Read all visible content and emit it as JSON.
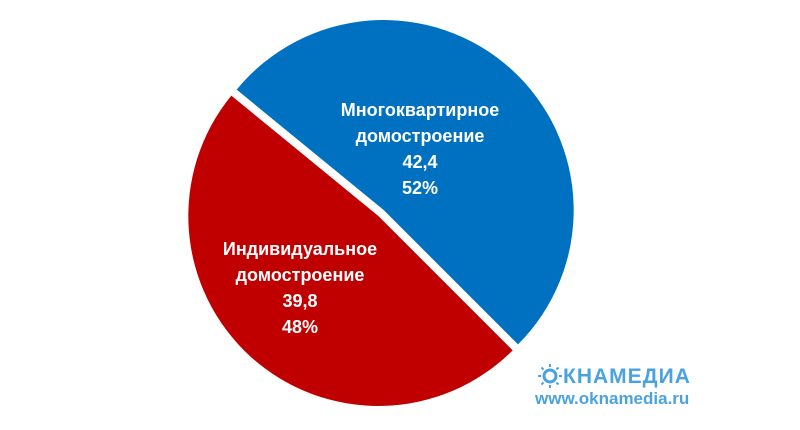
{
  "chart_data": {
    "type": "pie",
    "categories": [
      "Многоквартирное домостроение",
      "Индивидуальное домостроение"
    ],
    "values": [
      42.4,
      39.8
    ],
    "value_labels": [
      "42,4",
      "39,8"
    ],
    "percents": [
      52,
      48
    ],
    "percent_labels": [
      "52%",
      "48%"
    ],
    "colors": [
      "#0070c0",
      "#c00000"
    ]
  },
  "watermark": {
    "brand": "КНАМЕДИА",
    "url": "www.oknamedia.ru"
  }
}
